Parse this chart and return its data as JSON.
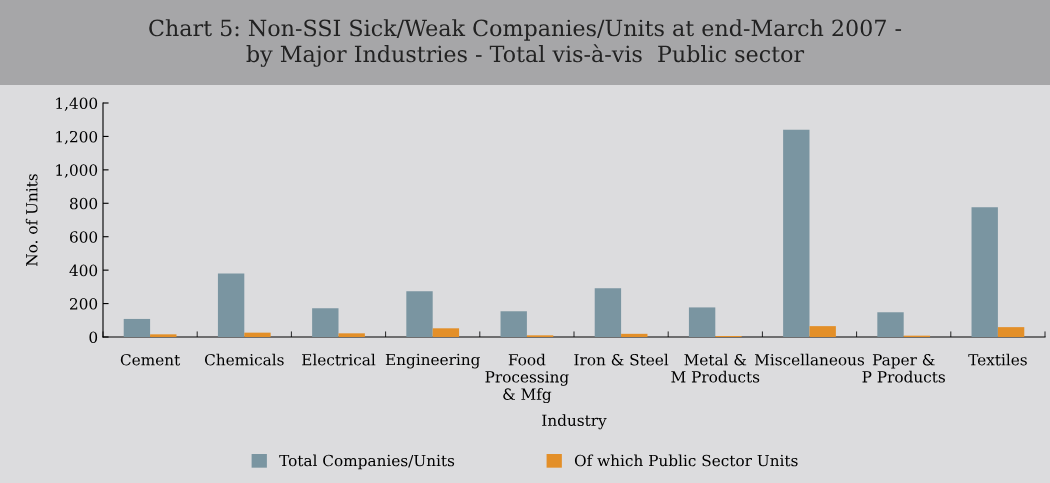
{
  "chart_data": {
    "type": "bar",
    "title": "Chart 5: Non-SSI Sick/Weak Companies/Units at end-March 2007 -\nby Major Industries - Total vis-à-vis  Public sector",
    "xlabel": "Industry",
    "ylabel": "No. of Units",
    "categories": [
      "Cement",
      "Chemicals",
      "Electrical",
      "Engineering",
      "Food\nProcessing\n& Mfg",
      "Iron & Steel",
      "Metal &\nM Products",
      "Miscellaneous",
      "Paper &\nP Products",
      "Textiles"
    ],
    "series": [
      {
        "name": "Total Companies/Units",
        "color": "#7a95a1",
        "values": [
          108,
          380,
          172,
          274,
          154,
          291,
          177,
          1240,
          148,
          776
        ]
      },
      {
        "name": "Of which Public Sector Units",
        "color": "#e38f28",
        "values": [
          16,
          26,
          22,
          52,
          10,
          19,
          6,
          65,
          8,
          59
        ]
      }
    ],
    "ylim": [
      0,
      1400
    ],
    "yticks": [
      0,
      {
        "value": 200,
        "label": "200"
      },
      {
        "value": 400,
        "label": "400"
      },
      {
        "value": 600,
        "label": "600"
      },
      {
        "value": 800,
        "label": "800"
      },
      {
        "value": 1000,
        "label": "1,000"
      },
      {
        "value": 1200,
        "label": "1,200"
      },
      {
        "value": 1400,
        "label": "1,400"
      }
    ],
    "grid": false,
    "legend": "bottom"
  }
}
